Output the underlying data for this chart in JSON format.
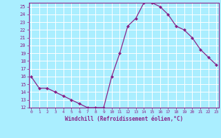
{
  "x": [
    0,
    1,
    2,
    3,
    4,
    5,
    6,
    7,
    8,
    9,
    10,
    11,
    12,
    13,
    14,
    15,
    16,
    17,
    18,
    19,
    20,
    21,
    22,
    23
  ],
  "y": [
    16,
    14.5,
    14.5,
    14,
    13.5,
    13,
    12.5,
    12,
    12,
    12,
    16,
    19,
    22.5,
    23.5,
    25.5,
    25.5,
    25,
    24,
    22.5,
    22,
    21,
    19.5,
    18.5,
    17.5
  ],
  "xlabel": "Windchill (Refroidissement éolien,°C)",
  "line_color": "#882288",
  "marker": "D",
  "bg_color": "#aaeeff",
  "grid_color": "#ffffff",
  "label_color": "#882288",
  "xticks": [
    0,
    1,
    2,
    3,
    4,
    5,
    6,
    7,
    8,
    9,
    10,
    11,
    12,
    13,
    14,
    15,
    16,
    17,
    18,
    19,
    20,
    21,
    22,
    23
  ],
  "yticks": [
    12,
    13,
    14,
    15,
    16,
    17,
    18,
    19,
    20,
    21,
    22,
    23,
    24,
    25
  ]
}
